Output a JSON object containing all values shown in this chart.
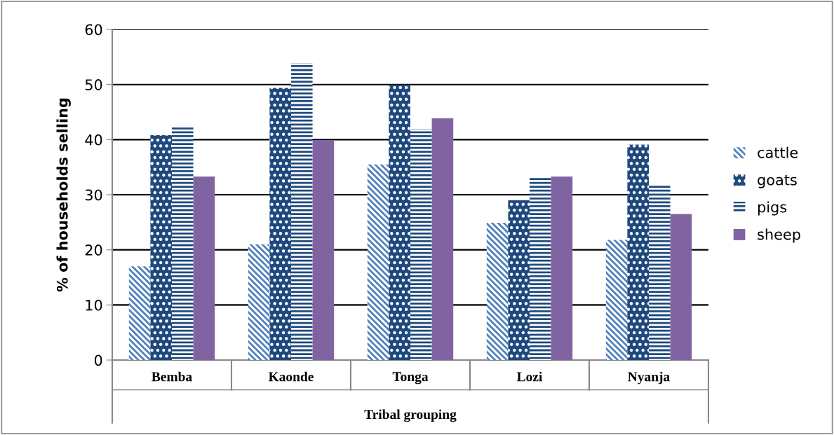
{
  "chart_data": {
    "type": "bar",
    "xlabel": "Tribal grouping",
    "ylabel": "% of households selling",
    "categories": [
      "Bemba",
      "Kaonde",
      "Tonga",
      "Lozi",
      "Nyanja"
    ],
    "series": [
      {
        "name": "cattle",
        "color": "#4f81bd",
        "values": [
          17.0,
          21.0,
          35.5,
          24.9,
          21.8
        ]
      },
      {
        "name": "goats",
        "color": "#1f497d",
        "values": [
          40.8,
          49.4,
          50.0,
          29.0,
          39.1
        ]
      },
      {
        "name": "pigs",
        "color": "#1f497d",
        "values": [
          42.5,
          53.9,
          41.9,
          33.1,
          31.8
        ]
      },
      {
        "name": "sheep",
        "color": "#8064a2",
        "values": [
          33.3,
          39.9,
          43.9,
          33.3,
          26.5
        ]
      }
    ],
    "ylim": [
      0,
      60
    ],
    "yticks": [
      0,
      10,
      20,
      30,
      40,
      50,
      60
    ],
    "grid": "y",
    "legend": "right"
  }
}
